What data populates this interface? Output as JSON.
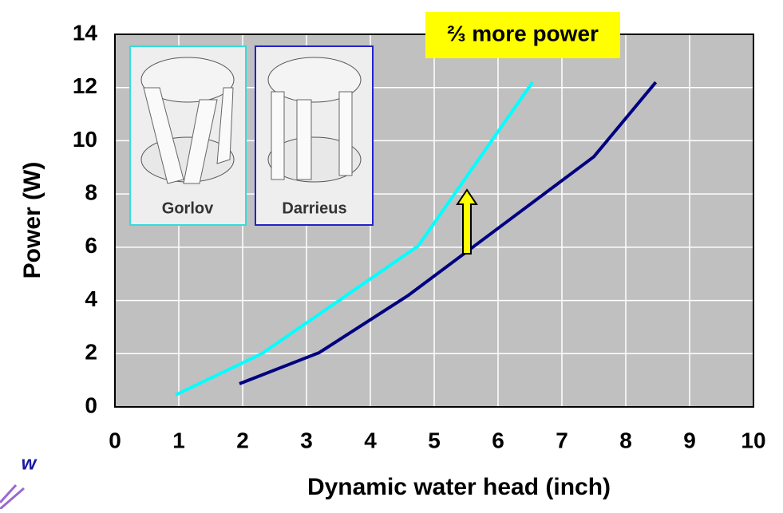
{
  "chart_data": {
    "type": "line",
    "xlabel": "Dynamic water head (inch)",
    "ylabel": "Power (W)",
    "annotation": "⅔ more power",
    "corner_text": "w",
    "series": [
      {
        "name": "Gorlov",
        "color": "#00ffff",
        "x": [
          0.95,
          2.3,
          4.75,
          6.54
        ],
        "values": [
          0.45,
          2.0,
          6.05,
          12.2
        ]
      },
      {
        "name": "Darrieus",
        "color": "#000080",
        "x": [
          1.95,
          3.2,
          4.6,
          7.5,
          8.47
        ],
        "values": [
          0.87,
          2.04,
          4.2,
          9.4,
          12.2
        ]
      }
    ],
    "xlim": [
      0,
      10
    ],
    "xticks": [
      0,
      1,
      2,
      3,
      4,
      5,
      6,
      7,
      8,
      9,
      10
    ],
    "ylim": [
      0,
      14
    ],
    "yticks": [
      0,
      2,
      4,
      6,
      8,
      10,
      12,
      14
    ],
    "grid": true
  }
}
